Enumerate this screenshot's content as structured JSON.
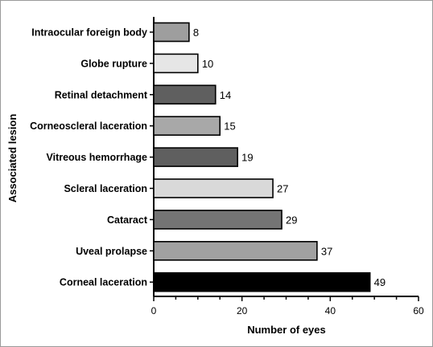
{
  "chart_data": {
    "type": "bar",
    "orientation": "horizontal",
    "xlabel": "Number of eyes",
    "ylabel": "Associated lesion",
    "xlim": [
      0,
      60
    ],
    "xticks": [
      0,
      20,
      40,
      60
    ],
    "grid": false,
    "categories": [
      "Intraocular foreign body",
      "Globe rupture",
      "Retinal detachment",
      "Corneoscleral laceration",
      "Vitreous hemorrhage",
      "Scleral laceration",
      "Cataract",
      "Uveal prolapse",
      "Corneal laceration"
    ],
    "values": [
      8,
      10,
      14,
      15,
      19,
      27,
      29,
      37,
      49
    ],
    "bar_colors": [
      "#9e9e9e",
      "#e6e6e6",
      "#5f5f5f",
      "#a8a8a8",
      "#5f5f5f",
      "#d9d9d9",
      "#747474",
      "#a1a1a1",
      "#000000"
    ]
  }
}
